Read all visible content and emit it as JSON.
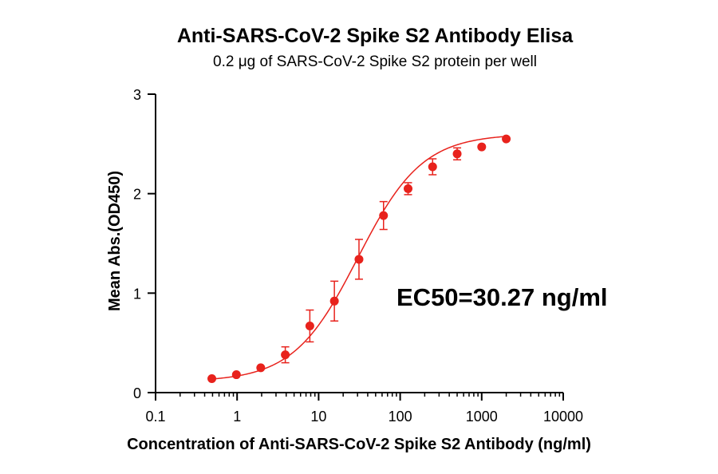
{
  "chart_data": {
    "type": "scatter",
    "title": "Anti-SARS-CoV-2 Spike S2 Antibody Elisa",
    "subtitle": "0.2 μg of SARS-CoV-2 Spike S2 protein per well",
    "xlabel": "Concentration of Anti-SARS-CoV-2 Spike S2 Antibody (ng/ml)",
    "ylabel": "Mean Abs.(OD450)",
    "xscale": "log",
    "xlim": [
      0.1,
      10000
    ],
    "ylim": [
      0,
      3
    ],
    "xticks": [
      "0.1",
      "1",
      "10",
      "100",
      "1000",
      "10000"
    ],
    "yticks": [
      "0",
      "1",
      "2",
      "3"
    ],
    "grid": false,
    "color": "#e8221c",
    "annotation": "EC50=30.27 ng/ml",
    "series": [
      {
        "x": [
          0.49,
          0.98,
          1.95,
          3.9,
          7.8,
          15.6,
          31.25,
          62.5,
          125,
          250,
          500,
          1000,
          2000
        ],
        "y": [
          0.14,
          0.18,
          0.25,
          0.38,
          0.67,
          0.92,
          1.34,
          1.78,
          2.05,
          2.27,
          2.4,
          2.47,
          2.55
        ],
        "error": [
          0.02,
          0.02,
          0.03,
          0.08,
          0.16,
          0.2,
          0.2,
          0.14,
          0.06,
          0.08,
          0.06,
          0.03,
          0.02
        ],
        "fit": {
          "model": "4PL",
          "bottom": 0.11,
          "top": 2.6,
          "ec50": 30.27,
          "hill": 1.1
        }
      }
    ]
  }
}
